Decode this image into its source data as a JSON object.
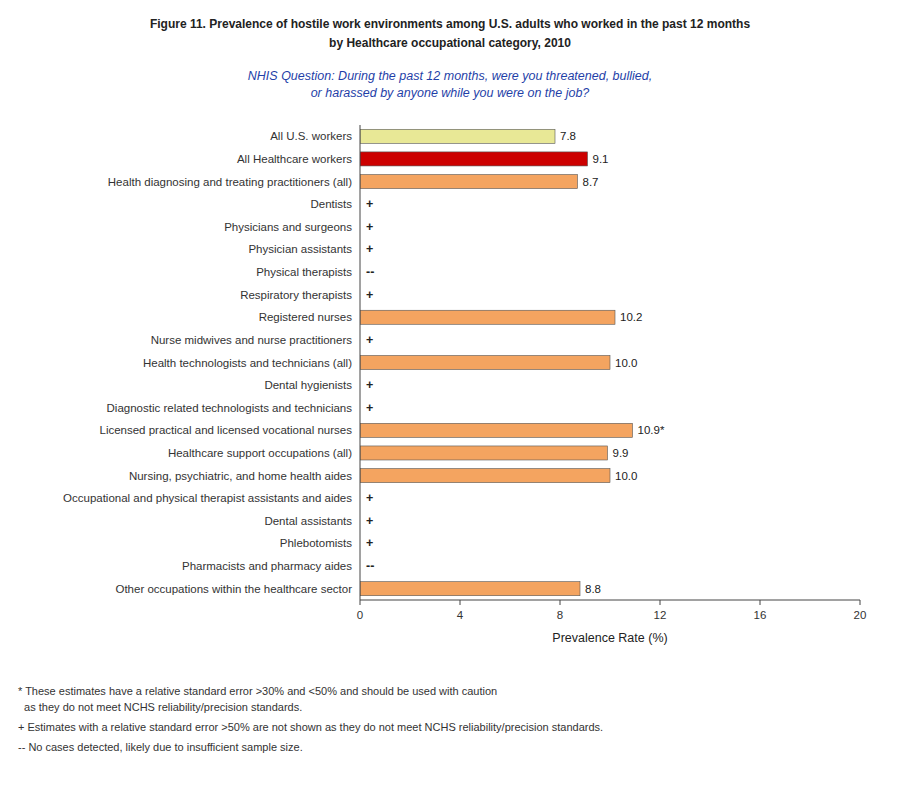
{
  "chart_data": {
    "type": "bar",
    "orientation": "horizontal",
    "title": "Figure 11. Prevalence of hostile work environments among U.S. adults who worked in the past 12 months\nby Healthcare occupational category, 2010",
    "subtitle": "NHIS Question: During the past 12 months, were you threatened, bullied,\nor harassed by anyone while you were on the job?",
    "xlabel": "Prevalence Rate (%)",
    "xlim": [
      0,
      20
    ],
    "xticks": [
      0,
      4,
      8,
      12,
      16,
      20
    ],
    "grid": false,
    "data_labels": true,
    "categories": [
      "All U.S. workers",
      "All Healthcare workers",
      "Health diagnosing and treating practitioners (all)",
      "Dentists",
      "Physicians and surgeons",
      "Physician assistants",
      "Physical therapists",
      "Respiratory therapists",
      "Registered nurses",
      "Nurse midwives and nurse practitioners",
      "Health technologists and technicians (all)",
      "Dental hygienists",
      "Diagnostic related technologists and technicians",
      "Licensed practical and licensed vocational nurses",
      "Healthcare support occupations (all)",
      "Nursing, psychiatric, and home health aides",
      "Occupational and physical therapist assistants and aides",
      "Dental assistants",
      "Phlebotomists",
      "Pharmacists and pharmacy aides",
      "Other occupations within the healthcare sector"
    ],
    "values": [
      7.8,
      9.1,
      8.7,
      null,
      null,
      null,
      null,
      null,
      10.2,
      null,
      10.0,
      null,
      null,
      10.9,
      9.9,
      10.0,
      null,
      null,
      null,
      null,
      8.8
    ],
    "value_labels": [
      "7.8",
      "9.1",
      "8.7",
      "+",
      "+",
      "+",
      "--",
      "+",
      "10.2",
      "+",
      "10.0",
      "+",
      "+",
      "10.9*",
      "9.9",
      "10.0",
      "+",
      "+",
      "+",
      "--",
      "8.8"
    ],
    "colors": [
      "#e8e896",
      "#cc0000",
      "#f4a460",
      null,
      null,
      null,
      null,
      null,
      "#f4a460",
      null,
      "#f4a460",
      null,
      null,
      "#f4a460",
      "#f4a460",
      "#f4a460",
      null,
      null,
      null,
      null,
      "#f4a460"
    ],
    "annotations": [
      "* These estimates have a relative standard error >30% and <50% and should be used with caution",
      "  as they do not meet NCHS reliability/precision standards.",
      "+ Estimates with a relative standard error >50% are not shown as they do not meet NCHS reliability/precision standards.",
      "-- No cases detected, likely due to insufficient sample size."
    ]
  }
}
